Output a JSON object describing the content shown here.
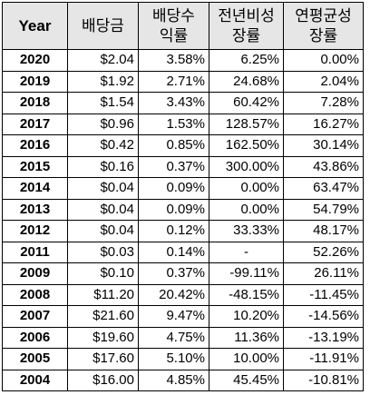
{
  "table": {
    "headers": {
      "year": "Year",
      "dividend": "배당금",
      "yield_line1": "배당수",
      "yield_line2": "익률",
      "yoy_line1": "전년비성",
      "yoy_line2": "장률",
      "cagr_line1": "연평균성",
      "cagr_line2": "장률"
    },
    "rows": [
      {
        "year": "2020",
        "dividend": "$2.04",
        "yield": "3.58%",
        "yoy": "6.25%",
        "cagr": "0.00%"
      },
      {
        "year": "2019",
        "dividend": "$1.92",
        "yield": "2.71%",
        "yoy": "24.68%",
        "cagr": "2.04%"
      },
      {
        "year": "2018",
        "dividend": "$1.54",
        "yield": "3.43%",
        "yoy": "60.42%",
        "cagr": "7.28%"
      },
      {
        "year": "2017",
        "dividend": "$0.96",
        "yield": "1.53%",
        "yoy": "128.57%",
        "cagr": "16.27%"
      },
      {
        "year": "2016",
        "dividend": "$0.42",
        "yield": "0.85%",
        "yoy": "162.50%",
        "cagr": "30.14%"
      },
      {
        "year": "2015",
        "dividend": "$0.16",
        "yield": "0.37%",
        "yoy": "300.00%",
        "cagr": "43.86%"
      },
      {
        "year": "2014",
        "dividend": "$0.04",
        "yield": "0.09%",
        "yoy": "0.00%",
        "cagr": "63.47%"
      },
      {
        "year": "2013",
        "dividend": "$0.04",
        "yield": "0.09%",
        "yoy": "0.00%",
        "cagr": "54.79%"
      },
      {
        "year": "2012",
        "dividend": "$0.04",
        "yield": "0.12%",
        "yoy": "33.33%",
        "cagr": "48.17%"
      },
      {
        "year": "2011",
        "dividend": "$0.03",
        "yield": "0.14%",
        "yoy": "-",
        "cagr": "52.26%"
      },
      {
        "year": "2009",
        "dividend": "$0.10",
        "yield": "0.37%",
        "yoy": "-99.11%",
        "cagr": "26.11%"
      },
      {
        "year": "2008",
        "dividend": "$11.20",
        "yield": "20.42%",
        "yoy": "-48.15%",
        "cagr": "-11.45%"
      },
      {
        "year": "2007",
        "dividend": "$21.60",
        "yield": "9.47%",
        "yoy": "10.20%",
        "cagr": "-14.56%"
      },
      {
        "year": "2006",
        "dividend": "$19.60",
        "yield": "4.75%",
        "yoy": "11.36%",
        "cagr": "-13.19%"
      },
      {
        "year": "2005",
        "dividend": "$17.60",
        "yield": "5.10%",
        "yoy": "10.00%",
        "cagr": "-11.91%"
      },
      {
        "year": "2004",
        "dividend": "$16.00",
        "yield": "4.85%",
        "yoy": "45.45%",
        "cagr": "-10.81%"
      }
    ]
  }
}
